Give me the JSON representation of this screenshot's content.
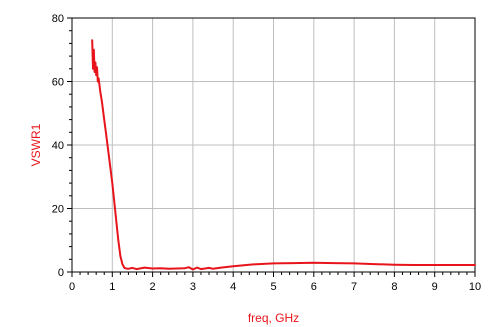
{
  "chart_data": {
    "type": "line",
    "title": "",
    "xlabel": "freq, GHz",
    "ylabel": "VSWR1",
    "xlim": [
      0,
      10
    ],
    "ylim": [
      0,
      80
    ],
    "x_ticks": [
      "0",
      "1",
      "2",
      "3",
      "4",
      "5",
      "6",
      "7",
      "8",
      "9",
      "10"
    ],
    "y_ticks": [
      "0",
      "20",
      "40",
      "60",
      "80"
    ],
    "grid": true,
    "legend": "none",
    "colors": {
      "series": "#e8141b",
      "axis_title": "#e8141b",
      "grid": "#bfbfbf",
      "axis": "#000000"
    },
    "series": [
      {
        "x": [
          0.5,
          0.52,
          0.54,
          0.56,
          0.58,
          0.6,
          0.62,
          0.64,
          0.66,
          0.7,
          0.75,
          0.8,
          0.85,
          0.9,
          0.95,
          1.0,
          1.05,
          1.1,
          1.15,
          1.2,
          1.25,
          1.3,
          1.35,
          1.4,
          1.5,
          1.6,
          1.8,
          2.0,
          2.2,
          2.4,
          2.6,
          2.8,
          2.9,
          3.0,
          3.1,
          3.2,
          3.4,
          3.5,
          3.7,
          4.0,
          4.5,
          5.0,
          5.5,
          6.0,
          6.5,
          7.0,
          7.5,
          8.0,
          8.5,
          9.0,
          9.5,
          10.0
        ],
        "values": [
          73.0,
          64.0,
          70.0,
          63.0,
          66.0,
          62.0,
          64.5,
          60.0,
          61.0,
          57.0,
          53.0,
          48.0,
          43.0,
          38.0,
          33.0,
          28.0,
          22.0,
          16.0,
          10.0,
          5.0,
          2.5,
          1.3,
          1.1,
          1.0,
          1.3,
          0.9,
          1.4,
          1.1,
          1.2,
          1.0,
          1.1,
          1.2,
          1.5,
          0.8,
          1.4,
          0.9,
          1.3,
          1.0,
          1.4,
          1.8,
          2.4,
          2.7,
          2.8,
          2.9,
          2.8,
          2.7,
          2.5,
          2.3,
          2.2,
          2.2,
          2.2,
          2.2
        ]
      }
    ]
  }
}
